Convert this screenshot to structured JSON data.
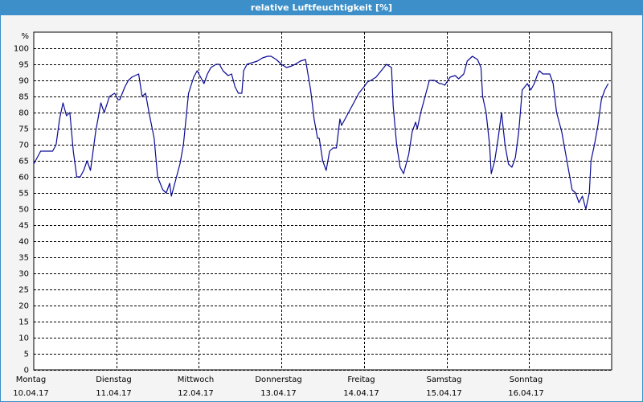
{
  "chart_data": {
    "type": "line",
    "title": "relative Luftfeuchtigkeit [%]",
    "y_label": "%",
    "color": "#0a0a96",
    "grid": true,
    "xlim": [
      0,
      168
    ],
    "ylim": [
      0,
      105
    ],
    "xticks": [
      {
        "value": 0,
        "label": "Montag",
        "date": "10.04.17"
      },
      {
        "value": 24,
        "label": "Dienstag",
        "date": "11.04.17"
      },
      {
        "value": 48,
        "label": "Mittwoch",
        "date": "12.04.17"
      },
      {
        "value": 72,
        "label": "Donnerstag",
        "date": "13.04.17"
      },
      {
        "value": 96,
        "label": "Freitag",
        "date": "14.04.17"
      },
      {
        "value": 120,
        "label": "Samstag",
        "date": "15.04.17"
      },
      {
        "value": 144,
        "label": "Sonntag",
        "date": "16.04.17"
      }
    ],
    "yticks": [
      0,
      5,
      10,
      15,
      20,
      25,
      30,
      35,
      40,
      45,
      50,
      55,
      60,
      65,
      70,
      75,
      80,
      85,
      90,
      95,
      100
    ],
    "x": [
      0,
      2,
      3.5,
      5.5,
      6.5,
      7.5,
      8.5,
      9.5,
      10.5,
      11.5,
      12.5,
      13.5,
      14.5,
      15.5,
      16.5,
      18,
      19.5,
      20.5,
      22,
      23.5,
      24.5,
      25,
      26.5,
      27.5,
      28.5,
      30.5,
      31.5,
      32.5,
      33.5,
      35,
      36,
      37.5,
      38.5,
      39.5,
      40,
      41.5,
      42.5,
      43.5,
      45,
      46.5,
      47.5,
      48.5,
      49.5,
      50.5,
      51.5,
      53,
      54,
      55,
      56.5,
      57.5,
      58.5,
      59.5,
      60.5,
      61,
      62,
      63.5,
      65,
      66.5,
      68,
      69,
      70.5,
      72,
      73.5,
      75,
      76,
      77.5,
      79,
      80.5,
      81.5,
      82.5,
      83,
      84,
      85,
      86,
      87,
      88,
      89,
      89.5,
      90.5,
      91.5,
      92.5,
      93.5,
      94.5,
      96,
      97,
      98,
      99.5,
      101,
      102.5,
      104,
      104.5,
      105.5,
      106.5,
      107.5,
      109,
      110,
      111,
      111.5,
      112.5,
      113.5,
      115,
      116.5,
      118,
      118.5,
      119.5,
      121,
      122.5,
      123.5,
      125,
      126,
      127.5,
      129,
      130,
      130.5,
      131.5,
      132.5,
      133,
      134,
      135,
      136,
      137,
      138,
      139,
      140,
      141,
      142,
      143.5,
      144.5,
      145.5,
      146.5,
      147,
      148,
      149,
      150,
      151,
      152,
      153.5,
      154.5,
      155.5,
      156.5,
      157.5,
      158.5,
      159.5,
      160.5,
      161.5,
      162,
      163,
      164,
      165,
      166,
      167
    ],
    "values": [
      64,
      68,
      68,
      68,
      70,
      78,
      83,
      79,
      80,
      68,
      60,
      60,
      62,
      65,
      62,
      74,
      83,
      80,
      85,
      86,
      84,
      84,
      88,
      90,
      91,
      92,
      85,
      86,
      80,
      72,
      60,
      56,
      55,
      58,
      54,
      60,
      64,
      70,
      86,
      91,
      93,
      91,
      89,
      92,
      94,
      95,
      95,
      93,
      91.5,
      92,
      88,
      86,
      86,
      93,
      95,
      95.5,
      96,
      97,
      97.5,
      97.5,
      96.5,
      95,
      94,
      94.5,
      95,
      96,
      96.5,
      87,
      78,
      72,
      72,
      65,
      62,
      68,
      69,
      69,
      78,
      76,
      78,
      80,
      82,
      84,
      86,
      88,
      89.5,
      90,
      91,
      93,
      95,
      94,
      82,
      70,
      63,
      61,
      67,
      74,
      77,
      75,
      80,
      84,
      90,
      90,
      89,
      89,
      88.5,
      91,
      91.5,
      90.5,
      92,
      96,
      97.5,
      96.5,
      94,
      85,
      80,
      70,
      61,
      65,
      72,
      80,
      70,
      64,
      63,
      66,
      74,
      87,
      89,
      87,
      89,
      92,
      93,
      92,
      92,
      92,
      89,
      80,
      74,
      68,
      62,
      56,
      55,
      52,
      54,
      50,
      55,
      65,
      70,
      76,
      84,
      87,
      89
    ]
  }
}
